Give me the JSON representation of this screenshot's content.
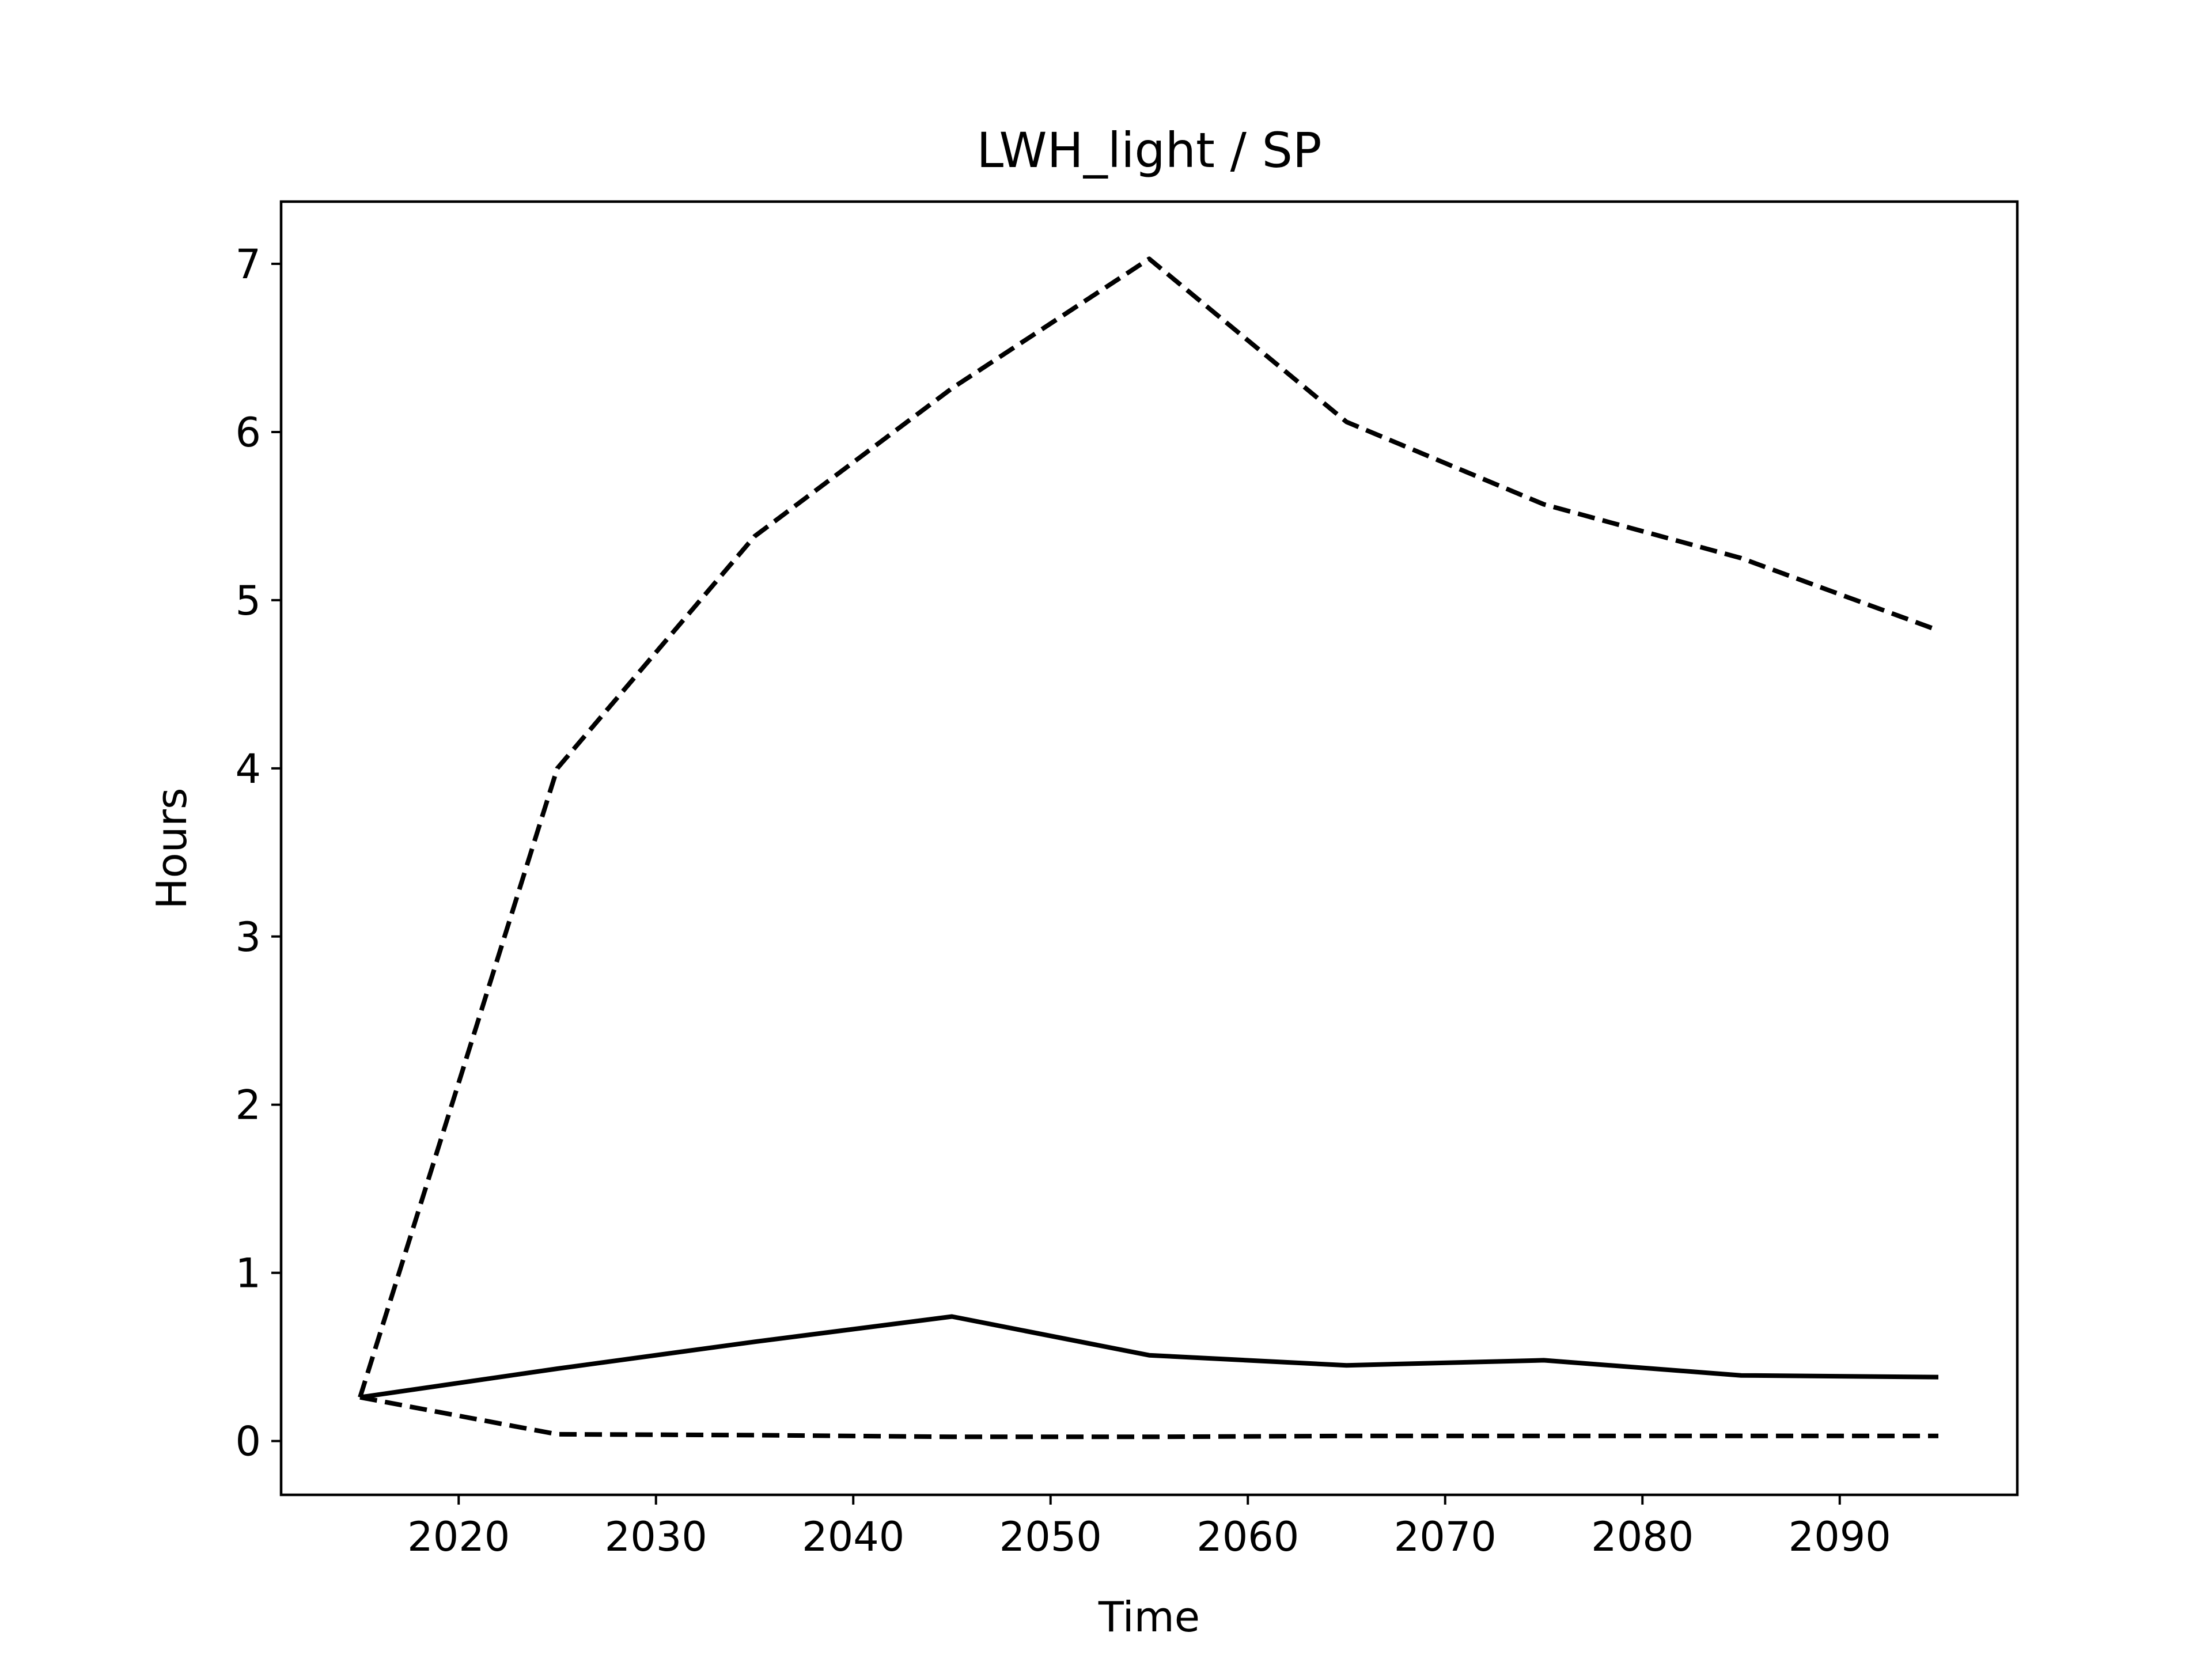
{
  "chart_data": {
    "type": "line",
    "title": "LWH_light / SP",
    "xlabel": "Time",
    "ylabel": "Hours",
    "xlim": [
      2011,
      2099
    ],
    "ylim": [
      -0.32,
      7.37
    ],
    "xticks": [
      2020,
      2030,
      2040,
      2050,
      2060,
      2070,
      2080,
      2090
    ],
    "yticks": [
      0,
      1,
      2,
      3,
      4,
      5,
      6,
      7
    ],
    "grid": false,
    "x": [
      2015,
      2025,
      2035,
      2045,
      2055,
      2065,
      2075,
      2085,
      2095
    ],
    "series": [
      {
        "style": "solid",
        "color": "#000000",
        "values": [
          0.26,
          0.43,
          0.59,
          0.74,
          0.51,
          0.45,
          0.48,
          0.39,
          0.38
        ]
      },
      {
        "style": "dashed",
        "color": "#000000",
        "values": [
          0.26,
          4.0,
          5.38,
          6.26,
          7.03,
          6.06,
          5.57,
          5.25,
          4.82
        ]
      },
      {
        "style": "dashed",
        "color": "#000000",
        "values": [
          0.26,
          0.04,
          0.035,
          0.025,
          0.025,
          0.03,
          0.03,
          0.03,
          0.03
        ]
      }
    ]
  }
}
